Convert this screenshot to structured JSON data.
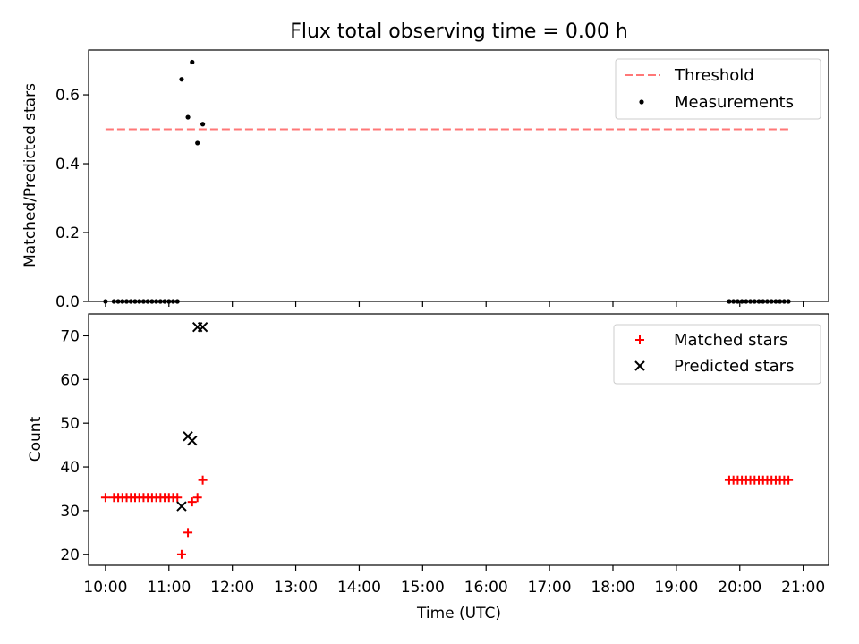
{
  "title": "Flux total observing time = 0.00 h",
  "chart_data": [
    {
      "type": "scatter",
      "ylabel": "Matched/Predicted stars",
      "xlim": [
        "09:44",
        "21:24"
      ],
      "ylim": [
        0,
        0.73
      ],
      "yticks": [
        "0.0",
        "0.2",
        "0.4",
        "0.6"
      ],
      "grid": false,
      "legend_position": "top-right",
      "threshold": {
        "name": "Threshold",
        "y": 0.5,
        "x_range": [
          "10:00",
          "20:48"
        ],
        "color": "#ff7777",
        "style": "dashed"
      },
      "series": [
        {
          "name": "Measurements",
          "marker": "dot",
          "color": "#000000",
          "x": [
            "10:00",
            "10:08",
            "10:12",
            "10:16",
            "10:20",
            "10:24",
            "10:28",
            "10:32",
            "10:36",
            "10:40",
            "10:44",
            "10:48",
            "10:52",
            "10:56",
            "11:00",
            "11:04",
            "11:08",
            "11:12",
            "11:18",
            "11:22",
            "11:27",
            "11:32",
            "19:50",
            "19:54",
            "19:58",
            "20:02",
            "20:06",
            "20:10",
            "20:14",
            "20:18",
            "20:22",
            "20:26",
            "20:30",
            "20:34",
            "20:38",
            "20:42",
            "20:46"
          ],
          "y": [
            0,
            0,
            0,
            0,
            0,
            0,
            0,
            0,
            0,
            0,
            0,
            0,
            0,
            0,
            0,
            0,
            0,
            0.645,
            0.535,
            0.695,
            0.46,
            0.515,
            0,
            0,
            0,
            0,
            0,
            0,
            0,
            0,
            0,
            0,
            0,
            0,
            0,
            0,
            0
          ]
        }
      ]
    },
    {
      "type": "scatter",
      "ylabel": "Count",
      "xlabel": "Time (UTC)",
      "xlim": [
        "09:44",
        "21:24"
      ],
      "ylim": [
        17.5,
        75
      ],
      "yticks": [
        "20",
        "30",
        "40",
        "50",
        "60",
        "70"
      ],
      "xticks": [
        "10:00",
        "11:00",
        "12:00",
        "13:00",
        "14:00",
        "15:00",
        "16:00",
        "17:00",
        "18:00",
        "19:00",
        "20:00",
        "21:00"
      ],
      "grid": false,
      "legend_position": "top-right",
      "series": [
        {
          "name": "Matched stars",
          "marker": "plus",
          "color": "#ff0000",
          "x": [
            "10:00",
            "10:08",
            "10:12",
            "10:16",
            "10:20",
            "10:24",
            "10:28",
            "10:32",
            "10:36",
            "10:40",
            "10:44",
            "10:48",
            "10:52",
            "10:56",
            "11:00",
            "11:04",
            "11:08",
            "11:12",
            "11:18",
            "11:22",
            "11:27",
            "11:32",
            "19:50",
            "19:54",
            "19:58",
            "20:02",
            "20:06",
            "20:10",
            "20:14",
            "20:18",
            "20:22",
            "20:26",
            "20:30",
            "20:34",
            "20:38",
            "20:42",
            "20:46"
          ],
          "y": [
            33,
            33,
            33,
            33,
            33,
            33,
            33,
            33,
            33,
            33,
            33,
            33,
            33,
            33,
            33,
            33,
            33,
            20,
            25,
            32,
            33,
            37,
            37,
            37,
            37,
            37,
            37,
            37,
            37,
            37,
            37,
            37,
            37,
            37,
            37,
            37,
            37
          ]
        },
        {
          "name": "Predicted stars",
          "marker": "x",
          "color": "#000000",
          "x": [
            "11:12",
            "11:18",
            "11:22",
            "11:27",
            "11:32"
          ],
          "y": [
            31,
            47,
            46,
            72,
            72
          ]
        }
      ]
    }
  ]
}
